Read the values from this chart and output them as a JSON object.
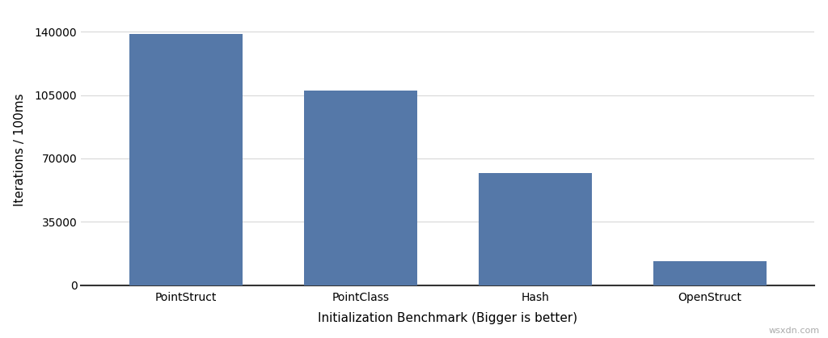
{
  "categories": [
    "PointStruct",
    "PointClass",
    "Hash",
    "OpenStruct"
  ],
  "values": [
    138500,
    107500,
    62000,
    13500
  ],
  "bar_color": "#5578a8",
  "xlabel": "Initialization Benchmark (Bigger is better)",
  "ylabel": "Iterations / 100ms",
  "yticks": [
    0,
    35000,
    70000,
    105000,
    140000
  ],
  "ylim": [
    0,
    150000
  ],
  "background_color": "#ffffff",
  "grid_color": "#d8d8d8",
  "bar_width": 0.65,
  "watermark": "wsxdn.com",
  "xlabel_fontsize": 11,
  "ylabel_fontsize": 11,
  "tick_fontsize": 10,
  "bottom_spine_color": "#333333"
}
